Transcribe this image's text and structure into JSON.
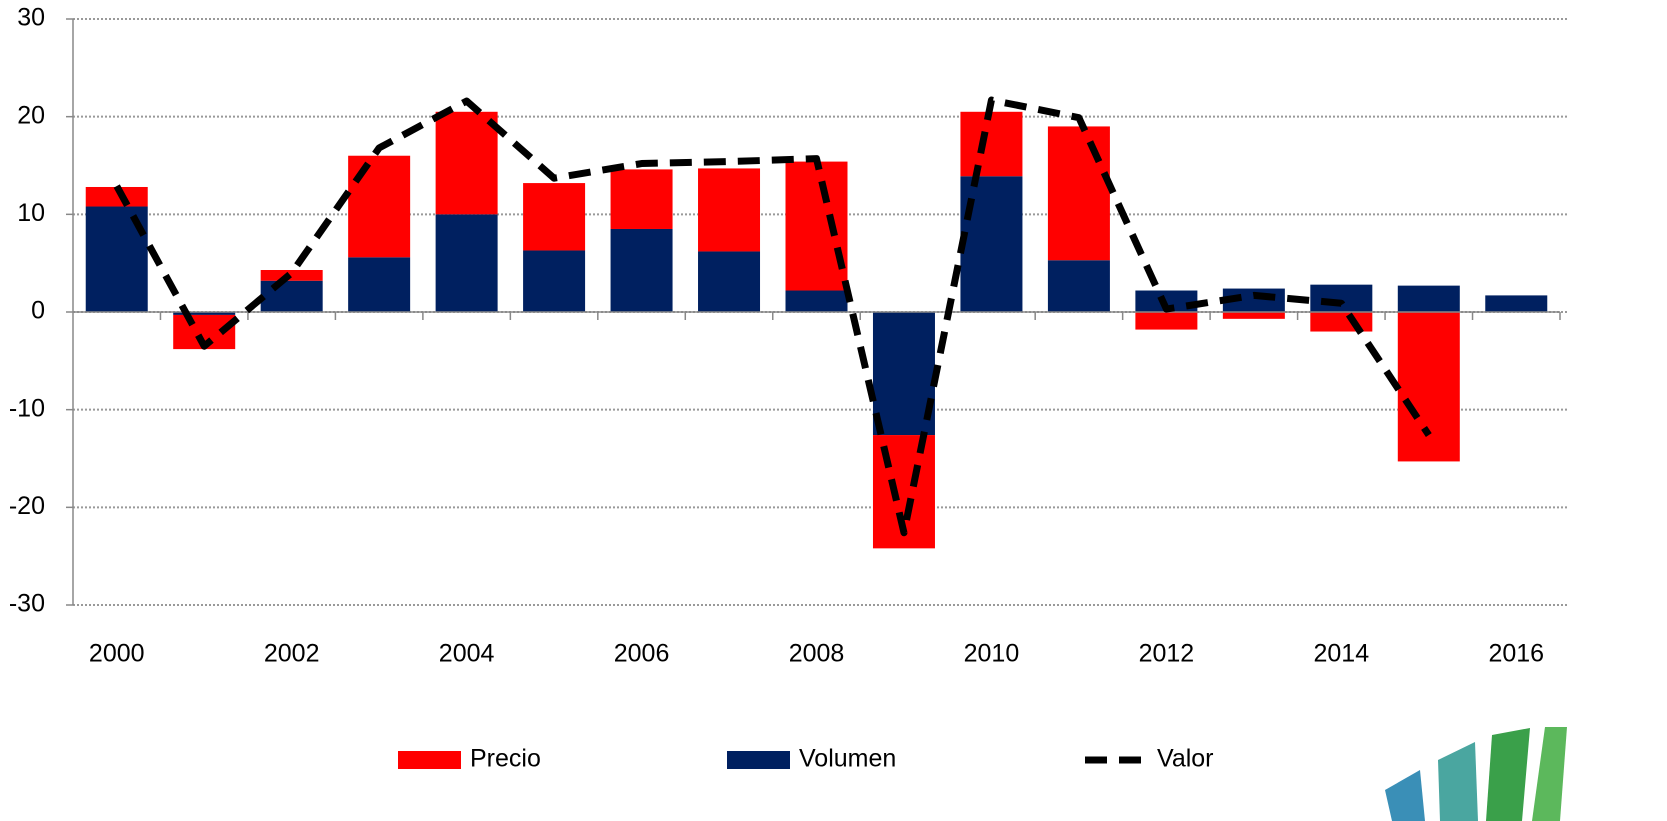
{
  "chart_data": {
    "type": "bar",
    "categories": [
      "2000",
      null,
      "2002",
      null,
      "2004",
      null,
      "2006",
      null,
      "2008",
      null,
      "2010",
      null,
      "2012",
      null,
      "2014",
      null,
      "2016"
    ],
    "series": [
      {
        "name": "Precio",
        "color": "#ff0000",
        "type": "bar",
        "values": [
          2.0,
          -3.5,
          1.1,
          10.4,
          10.5,
          6.9,
          6.1,
          8.5,
          13.2,
          -11.6,
          6.6,
          13.7,
          -1.8,
          -0.7,
          -2.0,
          -15.3,
          null
        ]
      },
      {
        "name": "Volumen",
        "color": "#002060",
        "type": "bar",
        "values": [
          10.8,
          -0.3,
          3.2,
          5.6,
          10.0,
          6.3,
          8.5,
          6.2,
          2.2,
          -12.6,
          13.9,
          5.3,
          2.2,
          2.4,
          2.8,
          2.7,
          1.7
        ]
      },
      {
        "name": "Valor",
        "color": "#000000",
        "type": "line",
        "values": [
          12.9,
          -3.5,
          4.0,
          16.8,
          21.6,
          13.7,
          15.2,
          15.4,
          15.7,
          -22.6,
          21.7,
          19.9,
          0.3,
          1.7,
          0.9,
          -12.6,
          null
        ]
      }
    ],
    "ylim": [
      -30,
      30
    ],
    "yticks": [
      -30,
      -20,
      -10,
      0,
      10,
      20,
      30
    ],
    "grid": true,
    "legend": "bottom"
  }
}
